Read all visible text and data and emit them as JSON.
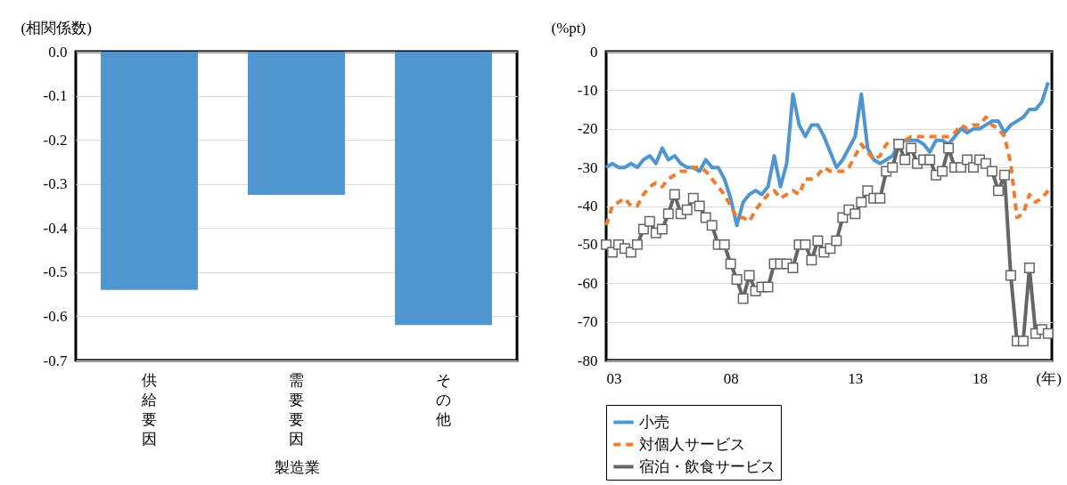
{
  "chart_data": [
    {
      "type": "bar",
      "ylabel": "(相関係数)",
      "xlabel": "製造業",
      "categories": [
        "供給要因",
        "需要要因",
        "その他"
      ],
      "values": [
        -0.54,
        -0.325,
        -0.62
      ],
      "color": "#4f96d1",
      "ylim": [
        -0.7,
        0
      ],
      "yticks": [
        {
          "value": 0,
          "label": "0.0"
        },
        {
          "value": -0.1,
          "label": "-0.1"
        },
        {
          "value": -0.2,
          "label": "-0.2"
        },
        {
          "value": -0.3,
          "label": "-0.3"
        },
        {
          "value": -0.4,
          "label": "-0.4"
        },
        {
          "value": -0.5,
          "label": "-0.5"
        },
        {
          "value": -0.6,
          "label": "-0.6"
        },
        {
          "value": -0.7,
          "label": "-0.7"
        }
      ],
      "grid": "y"
    },
    {
      "type": "line",
      "ylabel": "(%pt)",
      "xlabel": "(年)",
      "legend": "bottom",
      "grid": "y",
      "xlim": [
        2003,
        2020.9
      ],
      "xticks": [
        {
          "value": 2003,
          "label": "03"
        },
        {
          "value": 2008,
          "label": "08"
        },
        {
          "value": 2013,
          "label": "13"
        },
        {
          "value": 2018,
          "label": "18"
        }
      ],
      "ylim": [
        -80,
        0
      ],
      "yticks": [
        0,
        -10,
        -20,
        -30,
        -40,
        -50,
        -60,
        -70,
        -80
      ],
      "x": [
        2003,
        2003.25,
        2003.5,
        2003.75,
        2004,
        2004.25,
        2004.5,
        2004.75,
        2005,
        2005.25,
        2005.5,
        2005.75,
        2006,
        2006.25,
        2006.5,
        2006.75,
        2007,
        2007.25,
        2007.5,
        2007.75,
        2008,
        2008.25,
        2008.5,
        2008.75,
        2009,
        2009.25,
        2009.5,
        2009.75,
        2010,
        2010.25,
        2010.5,
        2010.75,
        2011,
        2011.25,
        2011.5,
        2011.75,
        2012,
        2012.25,
        2012.5,
        2012.75,
        2013,
        2013.25,
        2013.5,
        2013.75,
        2014,
        2014.25,
        2014.5,
        2014.75,
        2015,
        2015.25,
        2015.5,
        2015.75,
        2016,
        2016.25,
        2016.5,
        2016.75,
        2017,
        2017.25,
        2017.5,
        2017.75,
        2018,
        2018.25,
        2018.5,
        2018.75,
        2019,
        2019.25,
        2019.5,
        2019.75,
        2020,
        2020.25,
        2020.5,
        2020.75
      ],
      "series": [
        {
          "name": "小売",
          "color": "#4f96d1",
          "line_style": "solid",
          "marker": "none",
          "values": [
            -30,
            -29,
            -30,
            -30,
            -29,
            -30,
            -28,
            -27,
            -29,
            -25,
            -28,
            -27,
            -29,
            -30,
            -30,
            -31,
            -28,
            -30,
            -30,
            -33,
            -38,
            -45,
            -39,
            -37,
            -36,
            -37,
            -35,
            -27,
            -35,
            -29,
            -11,
            -19,
            -22,
            -19,
            -19,
            -22,
            -26,
            -30,
            -28,
            -25,
            -22,
            -11,
            -25,
            -28,
            -29,
            -28,
            -27,
            -24,
            -23,
            -23,
            -23,
            -24,
            -26,
            -23,
            -23,
            -24,
            -22,
            -20,
            -21,
            -20,
            -20,
            -19,
            -18,
            -18,
            -21,
            -19,
            -18,
            -17,
            -15,
            -15,
            -13,
            -8
          ]
        },
        {
          "name": "対個人サービス",
          "color": "#ed7d31",
          "line_style": "dashed",
          "marker": "none",
          "values": [
            -45,
            -40,
            -39,
            -38,
            -40,
            -40,
            -37,
            -35,
            -34,
            -35,
            -33,
            -32,
            -31,
            -31,
            -30,
            -30,
            -31,
            -33,
            -35,
            -37,
            -40,
            -43,
            -43,
            -44,
            -41,
            -39,
            -37,
            -36,
            -38,
            -37,
            -36,
            -37,
            -33,
            -33,
            -32,
            -30,
            -31,
            -31,
            -31,
            -30,
            -27,
            -24,
            -26,
            -28,
            -27,
            -24,
            -23,
            -23,
            -23,
            -22,
            -22,
            -22,
            -22,
            -22,
            -22,
            -22,
            -21,
            -19,
            -20,
            -19,
            -19,
            -17,
            -19,
            -20,
            -22,
            -29,
            -43,
            -42,
            -37,
            -39,
            -38,
            -36
          ]
        },
        {
          "name": "宿泊・飲食サービス",
          "color": "#666666",
          "line_style": "solid",
          "marker": "square",
          "values": [
            -50,
            -52,
            -50,
            -51,
            -52,
            -50,
            -46,
            -44,
            -47,
            -46,
            -42,
            -37,
            -42,
            -41,
            -38,
            -40,
            -43,
            -45,
            -50,
            -50,
            -55,
            -59,
            -64,
            -58,
            -62,
            -61,
            -61,
            -55,
            -55,
            -55,
            -56,
            -50,
            -50,
            -54,
            -49,
            -52,
            -51,
            -49,
            -43,
            -41,
            -42,
            -39,
            -36,
            -38,
            -38,
            -31,
            -30,
            -24,
            -28,
            -25,
            -29,
            -28,
            -28,
            -32,
            -31,
            -25,
            -30,
            -30,
            -28,
            -30,
            -28,
            -29,
            -31,
            -36,
            -32,
            -58,
            -75,
            -75,
            -56,
            -73,
            -72,
            -73
          ]
        }
      ]
    }
  ]
}
